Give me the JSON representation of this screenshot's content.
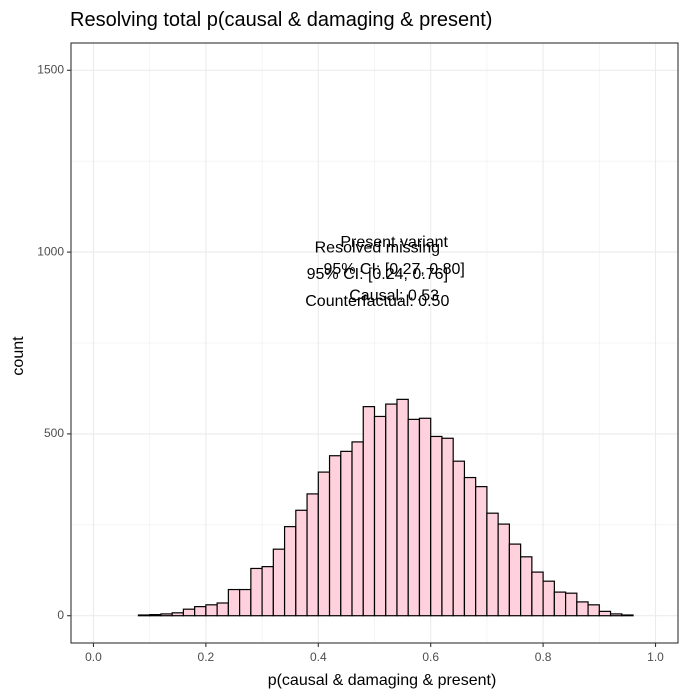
{
  "chart_data": {
    "type": "bar",
    "title": "Resolving total p(causal & damaging & present)",
    "xlabel": "p(causal & damaging & present)",
    "ylabel": "count",
    "xlim": [
      -0.04,
      1.04
    ],
    "ylim": [
      -75,
      1575
    ],
    "x_ticks": [
      0.0,
      0.2,
      0.4,
      0.6,
      0.8,
      1.0
    ],
    "x_tick_labels": [
      "0.0",
      "0.2",
      "0.4",
      "0.6",
      "0.8",
      "1.0"
    ],
    "y_ticks": [
      0,
      500,
      1000,
      1500
    ],
    "y_tick_labels": [
      "0",
      "500",
      "1000",
      "1500"
    ],
    "grid": true,
    "bin_width": 0.02,
    "bin_start": 0.01,
    "values": [
      0,
      0,
      0,
      0,
      2,
      3,
      5,
      8,
      18,
      25,
      30,
      35,
      72,
      72,
      130,
      135,
      183,
      245,
      290,
      335,
      395,
      440,
      452,
      478,
      575,
      548,
      582,
      595,
      540,
      543,
      493,
      488,
      425,
      380,
      355,
      282,
      252,
      197,
      162,
      120,
      95,
      65,
      62,
      38,
      30,
      12,
      5,
      2,
      0
    ],
    "bar_fill": "#ffd1dc",
    "bar_stroke": "#000000",
    "annotations": [
      {
        "text": "Present variant",
        "x": 0.535,
        "y": 1025
      },
      {
        "text": "95% CI: [0.27, 0.80]",
        "x": 0.535,
        "y": 952
      },
      {
        "text": "Causal: 0.53",
        "x": 0.535,
        "y": 878
      },
      {
        "text": "Resolved missing",
        "x": 0.505,
        "y": 1010
      },
      {
        "text": "95% CI: [0.24, 0.76]",
        "x": 0.505,
        "y": 937
      },
      {
        "text": "Counterfactual: 0.50",
        "x": 0.505,
        "y": 863
      }
    ]
  }
}
